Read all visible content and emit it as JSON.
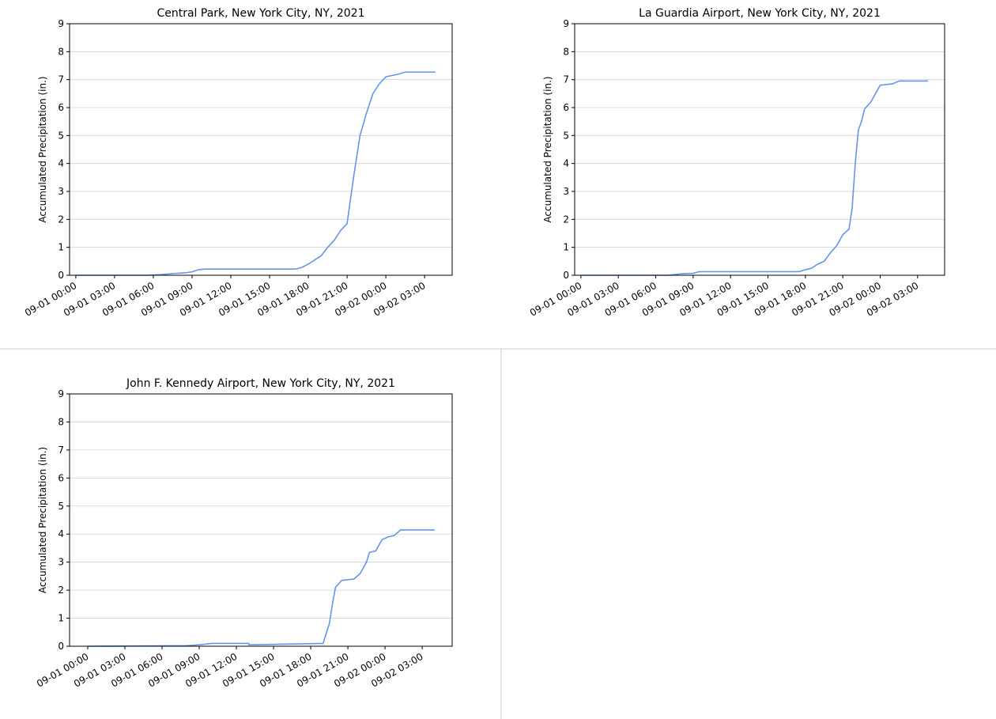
{
  "chart_data": [
    {
      "type": "line",
      "title": "Central Park, New York City, NY, 2021",
      "y_label": "Accumulated Precipitation (in.)",
      "color": "#6495ed",
      "grid": "y",
      "x": [
        "09-01 00:00",
        "09-01 03:00",
        "09-01 05:30",
        "09-01 06:30",
        "09-01 07:30",
        "09-01 08:30",
        "09-01 09:00",
        "09-01 09:30",
        "09-01 10:00",
        "09-01 17:00",
        "09-01 17:30",
        "09-01 18:00",
        "09-01 18:30",
        "09-01 19:00",
        "09-01 19:30",
        "09-01 20:00",
        "09-01 20:30",
        "09-01 21:00",
        "09-01 21:30",
        "09-01 22:00",
        "09-01 22:30",
        "09-01 23:00",
        "09-01 23:30",
        "09-02 00:00",
        "09-02 01:00",
        "09-02 01:30",
        "09-02 03:50"
      ],
      "values": [
        0,
        0,
        0,
        0.02,
        0.06,
        0.09,
        0.12,
        0.2,
        0.22,
        0.22,
        0.28,
        0.4,
        0.55,
        0.7,
        1.0,
        1.25,
        1.6,
        1.85,
        3.5,
        5.0,
        5.8,
        6.5,
        6.85,
        7.1,
        7.2,
        7.27,
        7.27
      ],
      "xlim": [
        "08-31 23:31",
        "09-02 05:08"
      ],
      "xticks": [
        "09-01 00:00",
        "09-01 03:00",
        "09-01 06:00",
        "09-01 09:00",
        "09-01 12:00",
        "09-01 15:00",
        "09-01 18:00",
        "09-01 21:00",
        "09-02 00:00",
        "09-02 03:00"
      ],
      "ylim": [
        0,
        9
      ],
      "yticks": [
        0,
        1,
        2,
        3,
        4,
        5,
        6,
        7,
        8,
        9
      ]
    },
    {
      "type": "line",
      "title": "La Guardia Airport, New York City, NY, 2021",
      "y_label": "Accumulated Precipitation (in.)",
      "color": "#6495ed",
      "grid": "y",
      "x": [
        "09-01 00:00",
        "09-01 07:00",
        "09-01 08:00",
        "09-01 09:00",
        "09-01 09:30",
        "09-01 17:30",
        "09-01 18:00",
        "09-01 18:30",
        "09-01 19:00",
        "09-01 19:30",
        "09-01 20:00",
        "09-01 20:30",
        "09-01 21:00",
        "09-01 21:30",
        "09-01 21:45",
        "09-01 22:00",
        "09-01 22:15",
        "09-01 22:30",
        "09-01 22:45",
        "09-01 23:15",
        "09-01 23:45",
        "09-02 00:00",
        "09-02 01:00",
        "09-02 01:30",
        "09-02 03:50"
      ],
      "values": [
        0,
        0,
        0.05,
        0.07,
        0.13,
        0.13,
        0.2,
        0.25,
        0.4,
        0.5,
        0.8,
        1.05,
        1.45,
        1.65,
        2.4,
        4.0,
        5.2,
        5.5,
        5.95,
        6.2,
        6.6,
        6.8,
        6.85,
        6.95,
        6.95
      ],
      "xlim": [
        "08-31 23:30",
        "09-02 05:10"
      ],
      "xticks": [
        "09-01 00:00",
        "09-01 03:00",
        "09-01 06:00",
        "09-01 09:00",
        "09-01 12:00",
        "09-01 15:00",
        "09-01 18:00",
        "09-01 21:00",
        "09-02 00:00",
        "09-02 03:00"
      ],
      "ylim": [
        0,
        9
      ],
      "yticks": [
        0,
        1,
        2,
        3,
        4,
        5,
        6,
        7,
        8,
        9
      ]
    },
    {
      "type": "line",
      "title": "John F. Kennedy Airport, New York City, NY, 2021",
      "y_label": "Accumulated Precipitation (in.)",
      "color": "#6495ed",
      "grid": "y",
      "x": [
        "09-01 00:00",
        "09-01 08:00",
        "09-01 09:00",
        "09-01 10:00",
        "09-01 13:00",
        "09-01 13:01",
        "09-01 19:00",
        "09-01 19:30",
        "09-01 19:45",
        "09-01 20:00",
        "09-01 20:30",
        "09-01 21:30",
        "09-01 22:00",
        "09-01 22:30",
        "09-01 22:45",
        "09-01 23:15",
        "09-01 23:45",
        "09-02 00:15",
        "09-02 00:45",
        "09-02 01:15",
        "09-02 04:00"
      ],
      "values": [
        0,
        0.02,
        0.05,
        0.1,
        0.1,
        0.05,
        0.1,
        0.8,
        1.5,
        2.1,
        2.35,
        2.4,
        2.6,
        3.0,
        3.35,
        3.4,
        3.8,
        3.9,
        3.95,
        4.15,
        4.15
      ],
      "xlim": [
        "08-31 22:32",
        "09-02 05:25"
      ],
      "xticks": [
        "09-01 00:00",
        "09-01 03:00",
        "09-01 06:00",
        "09-01 09:00",
        "09-01 12:00",
        "09-01 15:00",
        "09-01 18:00",
        "09-01 21:00",
        "09-02 00:00",
        "09-02 03:00"
      ],
      "ylim": [
        0,
        9
      ],
      "yticks": [
        0,
        1,
        2,
        3,
        4,
        5,
        6,
        7,
        8,
        9
      ]
    }
  ]
}
